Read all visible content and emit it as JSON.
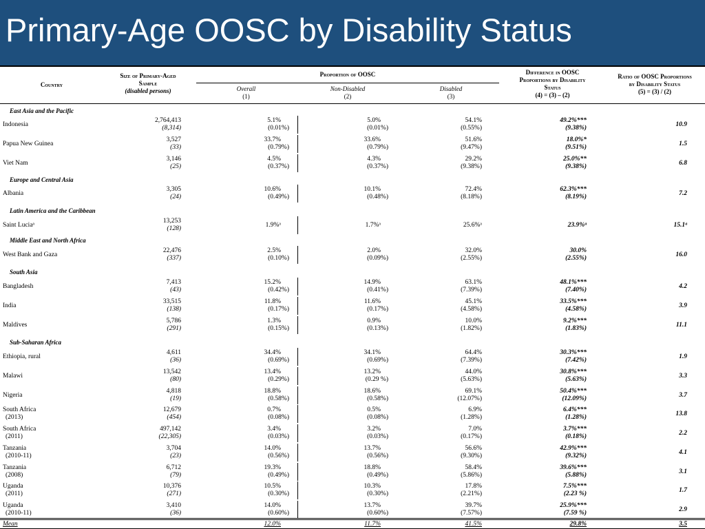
{
  "title": "Primary-Age OOSC by Disability Status",
  "headers": {
    "country": "Country",
    "sample_line1": "Size of Primary-Aged",
    "sample_line2": "Sample",
    "sample_line3": "(disabled persons)",
    "proportion": "Proportion of OOSC",
    "overall": "Overall",
    "overall_num": "(1)",
    "nondisabled": "Non-Disabled",
    "nondisabled_num": "(2)",
    "disabled": "Disabled",
    "disabled_num": "(3)",
    "diff_line1": "Difference in OOSC",
    "diff_line2": "Proportions by Disability",
    "diff_line3": "Status",
    "diff_line4": "(4) = (3) – (2)",
    "ratio_line1": "Ratio of OOSC Proportions",
    "ratio_line2": "by Disability Status",
    "ratio_line3": "(5) = (3) / (2)"
  },
  "regions": [
    "East Asia and the Pacific",
    "Europe and Central Asia",
    "Latin America and the Caribbean",
    "Middle East and North Africa",
    "South Asia",
    "Sub-Saharan Africa"
  ],
  "rows": [
    {
      "country": "Indonesia",
      "year": "",
      "sample": "2,764,413",
      "disabled_n": "(8,314)",
      "overall": "5.1%",
      "overall_se": "(0.01%)",
      "nondis": "5.0%",
      "nondis_se": "(0.01%)",
      "dis": "54.1%",
      "dis_se": "(0.55%)",
      "diff": "49.2%***",
      "diff_se": "(9.38%)",
      "ratio": "10.9"
    },
    {
      "country": "Papua New Guinea",
      "year": "",
      "sample": "3,527",
      "disabled_n": "(33)",
      "overall": "33.7%",
      "overall_se": "(0.79%)",
      "nondis": "33.6%",
      "nondis_se": "(0.79%)",
      "dis": "51.6%",
      "dis_se": "(9.47%)",
      "diff": "18.0%*",
      "diff_se": "(9.51%)",
      "ratio": "1.5"
    },
    {
      "country": "Viet Nam",
      "year": "",
      "sample": "3,146",
      "disabled_n": "(25)",
      "overall": "4.5%",
      "overall_se": "(0.37%)",
      "nondis": "4.3%",
      "nondis_se": "(0.37%)",
      "dis": "29.2%",
      "dis_se": "(9.38%)",
      "diff": "25.0%**",
      "diff_se": "(9.38%)",
      "ratio": "6.8"
    },
    {
      "country": "Albania",
      "year": "",
      "sample": "3,305",
      "disabled_n": "(24)",
      "overall": "10.6%",
      "overall_se": "(0.49%)",
      "nondis": "10.1%",
      "nondis_se": "(0.48%)",
      "dis": "72.4%",
      "dis_se": "(8.18%)",
      "diff": "62.3%***",
      "diff_se": "(8.19%)",
      "ratio": "7.2"
    },
    {
      "country": "Saint Luciaᵃ",
      "year": "",
      "sample": "13,253",
      "disabled_n": "(128)",
      "overall": "1.9%ᵃ",
      "overall_se": "",
      "nondis": "1.7%ᵃ",
      "nondis_se": "",
      "dis": "25.6%ᵃ",
      "dis_se": "",
      "diff": "23.9%ᵃ",
      "diff_se": "",
      "ratio": "15.1ᵃ"
    },
    {
      "country": "West Bank and Gaza",
      "year": "",
      "sample": "22,476",
      "disabled_n": "(337)",
      "overall": "2.5%",
      "overall_se": "(0.10%)",
      "nondis": "2.0%",
      "nondis_se": "(0.09%)",
      "dis": "32.0%",
      "dis_se": "(2.55%)",
      "diff": "30.0%",
      "diff_se": "(2.55%)",
      "ratio": "16.0"
    },
    {
      "country": "Bangladesh",
      "year": "",
      "sample": "7,413",
      "disabled_n": "(43)",
      "overall": "15.2%",
      "overall_se": "(0.42%)",
      "nondis": "14.9%",
      "nondis_se": "(0.41%)",
      "dis": "63.1%",
      "dis_se": "(7.39%)",
      "diff": "48.1%***",
      "diff_se": "(7.40%)",
      "ratio": "4.2"
    },
    {
      "country": "India",
      "year": "",
      "sample": "33,515",
      "disabled_n": "(138)",
      "overall": "11.8%",
      "overall_se": "(0.17%)",
      "nondis": "11.6%",
      "nondis_se": "(0.17%)",
      "dis": "45.1%",
      "dis_se": "(4.58%)",
      "diff": "33.5%***",
      "diff_se": "(4.58%)",
      "ratio": "3.9"
    },
    {
      "country": "Maldives",
      "year": "",
      "sample": "5,786",
      "disabled_n": "(291)",
      "overall": "1.3%",
      "overall_se": "(0.15%)",
      "nondis": "0.9%",
      "nondis_se": "(0.13%)",
      "dis": "10.0%",
      "dis_se": "(1.82%)",
      "diff": "9.2%***",
      "diff_se": "(1.83%)",
      "ratio": "11.1"
    },
    {
      "country": "Ethiopia, rural",
      "year": "",
      "sample": "4,611",
      "disabled_n": "(36)",
      "overall": "34.4%",
      "overall_se": "(0.69%)",
      "nondis": "34.1%",
      "nondis_se": "(0.69%)",
      "dis": "64.4%",
      "dis_se": "(7.39%)",
      "diff": "30.3%***",
      "diff_se": "(7.42%)",
      "ratio": "1.9"
    },
    {
      "country": "Malawi",
      "year": "",
      "sample": "13,542",
      "disabled_n": "(80)",
      "overall": "13.4%",
      "overall_se": "(0.29%)",
      "nondis": "13.2%",
      "nondis_se": "(0.29 %)",
      "dis": "44.0%",
      "dis_se": "(5.63%)",
      "diff": "30.8%***",
      "diff_se": "(5.63%)",
      "ratio": "3.3"
    },
    {
      "country": "Nigeria",
      "year": "",
      "sample": "4,818",
      "disabled_n": "(19)",
      "overall": "18.8%",
      "overall_se": "(0.58%)",
      "nondis": "18.6%",
      "nondis_se": "(0.58%)",
      "dis": "69.1%",
      "dis_se": "(12.07%)",
      "diff": "50.4%***",
      "diff_se": "(12.09%)",
      "ratio": "3.7"
    },
    {
      "country": "South Africa",
      "year": "(2013)",
      "sample": "12,679",
      "disabled_n": "(454)",
      "overall": "0.7%",
      "overall_se": "(0.08%)",
      "nondis": "0.5%",
      "nondis_se": "(0.08%)",
      "dis": "6.9%",
      "dis_se": "(1.28%)",
      "diff": "6.4%***",
      "diff_se": "(1.28%)",
      "ratio": "13.8"
    },
    {
      "country": "South Africa",
      "year": "(2011)",
      "sample": "497,142",
      "disabled_n": "(22,305)",
      "overall": "3.4%",
      "overall_se": "(0.03%)",
      "nondis": "3.2%",
      "nondis_se": "(0.03%)",
      "dis": "7.0%",
      "dis_se": "(0.17%)",
      "diff": "3.7%***",
      "diff_se": "(0.18%)",
      "ratio": "2.2"
    },
    {
      "country": "Tanzania",
      "year": "(2010-11)",
      "sample": "3,704",
      "disabled_n": "(23)",
      "overall": "14.0%",
      "overall_se": "(0.56%)",
      "nondis": "13.7%",
      "nondis_se": "(0.56%)",
      "dis": "56.6%",
      "dis_se": "(9.30%)",
      "diff": "42.9%***",
      "diff_se": "(9.32%)",
      "ratio": "4.1"
    },
    {
      "country": "Tanzania",
      "year": "(2008)",
      "sample": "6,712",
      "disabled_n": "(79)",
      "overall": "19.3%",
      "overall_se": "(0.49%)",
      "nondis": "18.8%",
      "nondis_se": "(0.49%)",
      "dis": "58.4%",
      "dis_se": "(5.86%)",
      "diff": "39.6%***",
      "diff_se": "(5.88%)",
      "ratio": "3.1"
    },
    {
      "country": "Uganda",
      "year": "(2011)",
      "sample": "10,376",
      "disabled_n": "(271)",
      "overall": "10.5%",
      "overall_se": "(0.30%)",
      "nondis": "10.3%",
      "nondis_se": "(0.30%)",
      "dis": "17.8%",
      "dis_se": "(2.21%)",
      "diff": "7.5%***",
      "diff_se": "(2.23 %)",
      "ratio": "1.7"
    },
    {
      "country": "Uganda",
      "year": "(2010-11)",
      "sample": "3,410",
      "disabled_n": "(36)",
      "overall": "14.0%",
      "overall_se": "(0.60%)",
      "nondis": "13.7%",
      "nondis_se": "(0.60%)",
      "dis": "39.7%",
      "dis_se": "(7.57%)",
      "diff": "25.9%***",
      "diff_se": "(7.59 %)",
      "ratio": "2.9"
    }
  ],
  "mean": {
    "label": "Mean",
    "overall": "12.0%",
    "nondis": "11.7%",
    "dis": "41.5%",
    "diff": "29.8%",
    "ratio": "3.5"
  }
}
